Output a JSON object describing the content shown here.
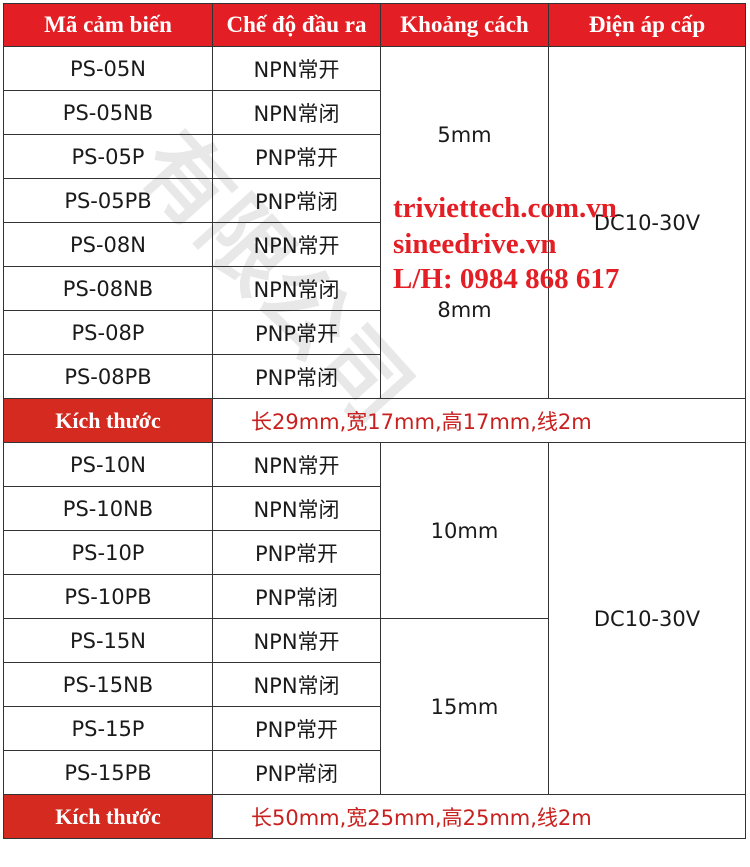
{
  "headers": [
    "Mã cảm biến",
    "Chế độ đầu ra",
    "Khoảng cách",
    "Điện áp cấp"
  ],
  "group1": {
    "rows": [
      {
        "model": "PS-05N",
        "mode": "NPN常开"
      },
      {
        "model": "PS-05NB",
        "mode": "NPN常闭"
      },
      {
        "model": "PS-05P",
        "mode": "PNP常开"
      },
      {
        "model": "PS-05PB",
        "mode": "PNP常闭"
      },
      {
        "model": "PS-08N",
        "mode": "NPN常开"
      },
      {
        "model": "PS-08NB",
        "mode": "NPN常闭"
      },
      {
        "model": "PS-08P",
        "mode": "PNP常开"
      },
      {
        "model": "PS-08PB",
        "mode": "PNP常闭"
      }
    ],
    "distance_a": "5mm",
    "distance_b": "8mm",
    "voltage": "DC10-30V",
    "size_label": "Kích thước",
    "size_value": "长29mm,宽17mm,高17mm,线2m"
  },
  "group2": {
    "rows": [
      {
        "model": "PS-10N",
        "mode": "NPN常开"
      },
      {
        "model": "PS-10NB",
        "mode": "NPN常闭"
      },
      {
        "model": "PS-10P",
        "mode": "PNP常开"
      },
      {
        "model": "PS-10PB",
        "mode": "PNP常闭"
      },
      {
        "model": "PS-15N",
        "mode": "NPN常开"
      },
      {
        "model": "PS-15NB",
        "mode": "NPN常闭"
      },
      {
        "model": "PS-15P",
        "mode": "PNP常开"
      },
      {
        "model": "PS-15PB",
        "mode": "PNP常闭"
      }
    ],
    "distance_a": "10mm",
    "distance_b": "15mm",
    "voltage": "DC10-30V",
    "size_label": "Kích thước",
    "size_value": "长50mm,宽25mm,高25mm,线2m"
  },
  "overlay": {
    "line1": "triviettech.com.vn",
    "line2": "sineedrive.vn",
    "line3": "L/H: 0984 868 617"
  },
  "watermark": "有限公司",
  "colors": {
    "header_red": "#e31e24",
    "size_red": "#d42a20",
    "overlay_red": "#e31e24"
  }
}
